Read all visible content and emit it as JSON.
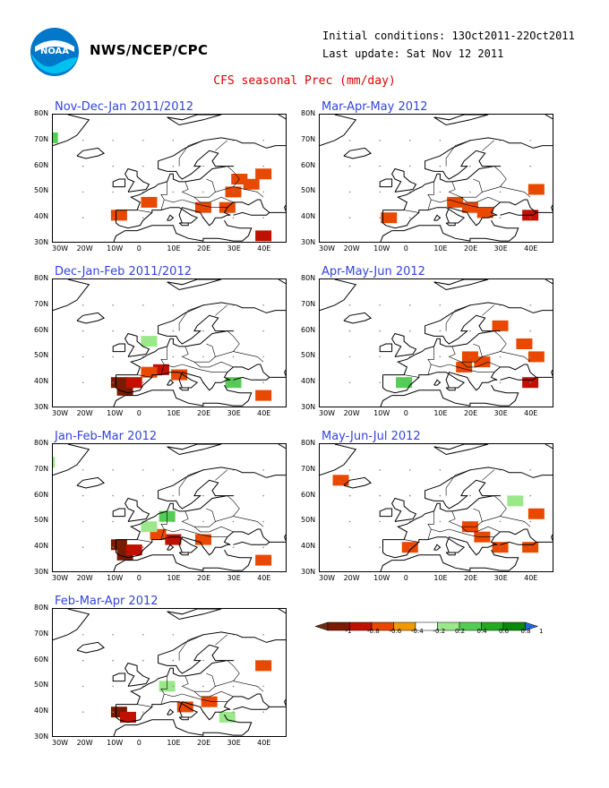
{
  "header": {
    "org": "NWS/NCEP/CPC",
    "initial_conditions": "Initial conditions: 13Oct2011-22Oct2011",
    "last_update": "Last update: Sat Nov 12 2011",
    "title": "CFS seasonal Prec (mm/day)",
    "logo_text": "NOAA"
  },
  "axes": {
    "lat_labels": [
      "80N",
      "70N",
      "60N",
      "50N",
      "40N",
      "30N"
    ],
    "lon_labels": [
      "30W",
      "20W",
      "10W",
      "0",
      "10E",
      "20E",
      "30E",
      "40E"
    ]
  },
  "panels": [
    {
      "title": "Nov-Dec-Jan 2011/2012",
      "column": "left",
      "row": 0,
      "anomalies": [
        {
          "lon": -33,
          "lat": 72,
          "v": 0.4
        },
        {
          "lon": -31,
          "lat": 71,
          "v": 0.4
        },
        {
          "lon": 32,
          "lat": 55,
          "v": -0.4
        },
        {
          "lon": 36,
          "lat": 53,
          "v": -0.4
        },
        {
          "lon": 40,
          "lat": 57,
          "v": -0.4
        },
        {
          "lon": 30,
          "lat": 50,
          "v": -0.4
        },
        {
          "lon": 20,
          "lat": 44,
          "v": -0.4
        },
        {
          "lon": 28,
          "lat": 44,
          "v": -0.4
        },
        {
          "lon": -8,
          "lat": 41,
          "v": -0.4
        },
        {
          "lon": 2,
          "lat": 46,
          "v": -0.4
        },
        {
          "lon": 40,
          "lat": 33,
          "v": -0.6
        }
      ]
    },
    {
      "title": "Mar-Apr-May 2012",
      "column": "right",
      "row": 0,
      "anomalies": [
        {
          "lon": 15,
          "lat": 46,
          "v": -0.4
        },
        {
          "lon": 20,
          "lat": 44,
          "v": -0.4
        },
        {
          "lon": 25,
          "lat": 42,
          "v": -0.4
        },
        {
          "lon": 42,
          "lat": 51,
          "v": -0.4
        },
        {
          "lon": 40,
          "lat": 41,
          "v": -0.6
        },
        {
          "lon": -7,
          "lat": 40,
          "v": -0.4
        }
      ]
    },
    {
      "title": "Dec-Jan-Feb 2011/2012",
      "column": "left",
      "row": 1,
      "anomalies": [
        {
          "lon": -8,
          "lat": 40,
          "v": -0.8
        },
        {
          "lon": -6,
          "lat": 37,
          "v": -0.8
        },
        {
          "lon": -3,
          "lat": 40,
          "v": -0.6
        },
        {
          "lon": 6,
          "lat": 45,
          "v": -0.6
        },
        {
          "lon": 2,
          "lat": 44,
          "v": -0.4
        },
        {
          "lon": 12,
          "lat": 43,
          "v": -0.4
        },
        {
          "lon": 30,
          "lat": 40,
          "v": 0.4
        },
        {
          "lon": 40,
          "lat": 35,
          "v": -0.4
        },
        {
          "lon": 2,
          "lat": 56,
          "v": 0.2
        }
      ]
    },
    {
      "title": "Apr-May-Jun 2012",
      "column": "right",
      "row": 1,
      "anomalies": [
        {
          "lon": 20,
          "lat": 50,
          "v": -0.4
        },
        {
          "lon": 18,
          "lat": 46,
          "v": -0.4
        },
        {
          "lon": 24,
          "lat": 48,
          "v": -0.4
        },
        {
          "lon": 30,
          "lat": 62,
          "v": -0.4
        },
        {
          "lon": 42,
          "lat": 50,
          "v": -0.4
        },
        {
          "lon": 38,
          "lat": 55,
          "v": -0.4
        },
        {
          "lon": 40,
          "lat": 40,
          "v": -0.6
        },
        {
          "lon": -2,
          "lat": 40,
          "v": 0.4
        }
      ]
    },
    {
      "title": "Jan-Feb-Mar 2012",
      "column": "left",
      "row": 2,
      "anomalies": [
        {
          "lon": -8,
          "lat": 41,
          "v": -0.8
        },
        {
          "lon": -6,
          "lat": 37,
          "v": -0.8
        },
        {
          "lon": -3,
          "lat": 39,
          "v": -0.6
        },
        {
          "lon": 10,
          "lat": 43,
          "v": -0.6
        },
        {
          "lon": 5,
          "lat": 45,
          "v": -0.4
        },
        {
          "lon": 20,
          "lat": 43,
          "v": -0.4
        },
        {
          "lon": 8,
          "lat": 52,
          "v": 0.4
        },
        {
          "lon": 2,
          "lat": 48,
          "v": 0.2
        },
        {
          "lon": -32,
          "lat": 73,
          "v": 0.2
        },
        {
          "lon": 40,
          "lat": 35,
          "v": -0.4
        }
      ]
    },
    {
      "title": "May-Jun-Jul 2012",
      "column": "right",
      "row": 2,
      "anomalies": [
        {
          "lon": 20,
          "lat": 48,
          "v": -0.4
        },
        {
          "lon": 24,
          "lat": 44,
          "v": -0.4
        },
        {
          "lon": 30,
          "lat": 40,
          "v": -0.4
        },
        {
          "lon": 40,
          "lat": 40,
          "v": -0.4
        },
        {
          "lon": -23,
          "lat": 66,
          "v": -0.4
        },
        {
          "lon": 42,
          "lat": 53,
          "v": -0.4
        },
        {
          "lon": 0,
          "lat": 40,
          "v": -0.4
        },
        {
          "lon": 35,
          "lat": 58,
          "v": 0.2
        }
      ]
    },
    {
      "title": "Feb-Mar-Apr 2012",
      "column": "left",
      "row": 3,
      "anomalies": [
        {
          "lon": -8,
          "lat": 40,
          "v": -0.8
        },
        {
          "lon": -5,
          "lat": 38,
          "v": -0.6
        },
        {
          "lon": 14,
          "lat": 42,
          "v": -0.4
        },
        {
          "lon": 22,
          "lat": 44,
          "v": -0.4
        },
        {
          "lon": 8,
          "lat": 50,
          "v": 0.2
        },
        {
          "lon": 28,
          "lat": 38,
          "v": 0.2
        },
        {
          "lon": 40,
          "lat": 58,
          "v": -0.4
        }
      ]
    }
  ],
  "colorbar": {
    "labels": [
      "-1",
      "-0.8",
      "-0.6",
      "-0.4",
      "-0.2",
      "0.2",
      "0.4",
      "0.6",
      "0.8",
      "1"
    ],
    "colors": [
      "#7a1a00",
      "#c01000",
      "#e84800",
      "#f09a00",
      "#ffffff",
      "#9be88a",
      "#55cc55",
      "#22aa22",
      "#0a8a0a"
    ],
    "low_arrow": "#6b2c10",
    "high_arrow": "#2266dd"
  }
}
